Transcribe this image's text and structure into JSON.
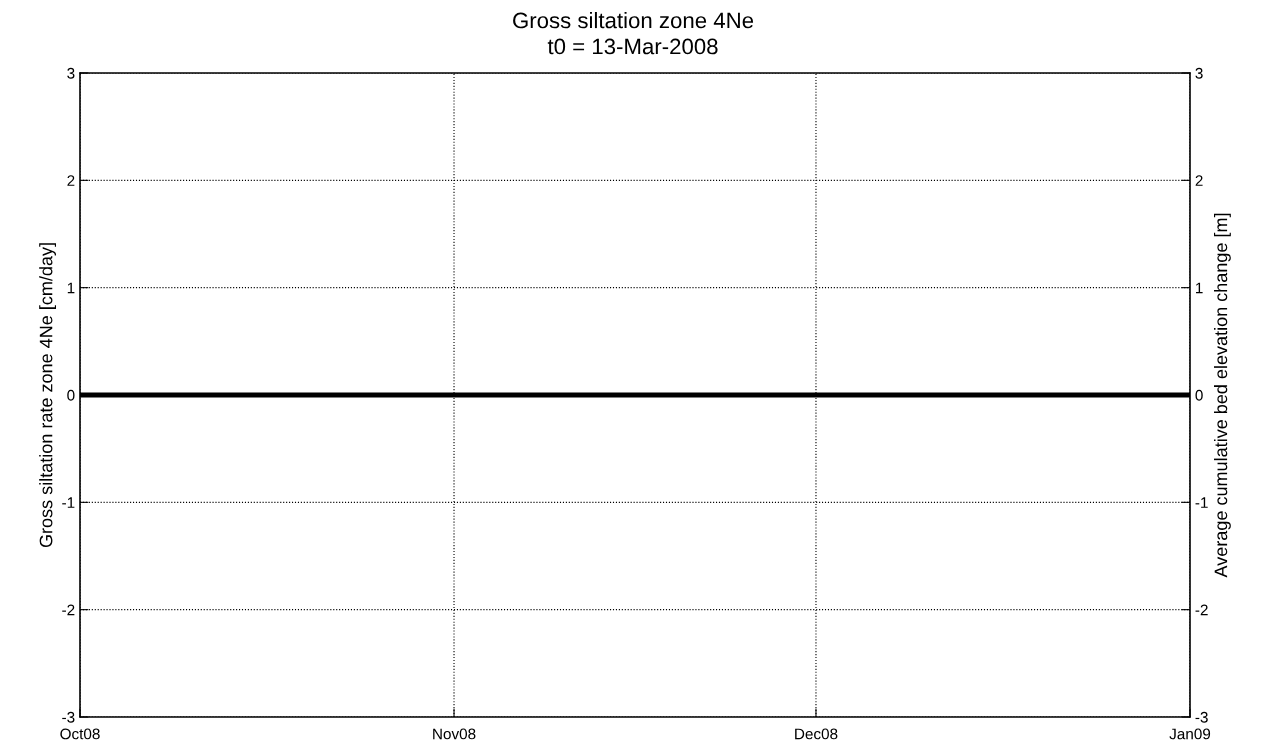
{
  "chart_data": {
    "type": "line",
    "title": "Gross siltation zone 4Ne",
    "subtitle": "t0 = 13-Mar-2008",
    "ylabel": "Gross siltation rate zone 4Ne [cm/day]",
    "y2label": "Average cumulative bed elevation change [m]",
    "x": [
      "2008-10-01",
      "2008-11-01",
      "2008-12-01",
      "2009-01-01"
    ],
    "series": [
      {
        "color": "#000000",
        "values": [
          0,
          0,
          0,
          0
        ]
      }
    ],
    "xlim": [
      "2008-10-01",
      "2009-01-01"
    ],
    "xticks": [
      {
        "value": "2008-10-01",
        "label": "Oct08"
      },
      {
        "value": "2008-11-01",
        "label": "Nov08"
      },
      {
        "value": "2008-12-01",
        "label": "Dec08"
      },
      {
        "value": "2009-01-01",
        "label": "Jan09"
      }
    ],
    "ylim": [
      -3,
      3
    ],
    "yticks": [
      -3,
      -2,
      -1,
      0,
      1,
      2,
      3
    ],
    "y2lim": [
      -3,
      3
    ],
    "y2ticks": [
      -3,
      -2,
      -1,
      0,
      1,
      2,
      3
    ],
    "grid": true,
    "line_style": "solid",
    "marker": "none"
  }
}
